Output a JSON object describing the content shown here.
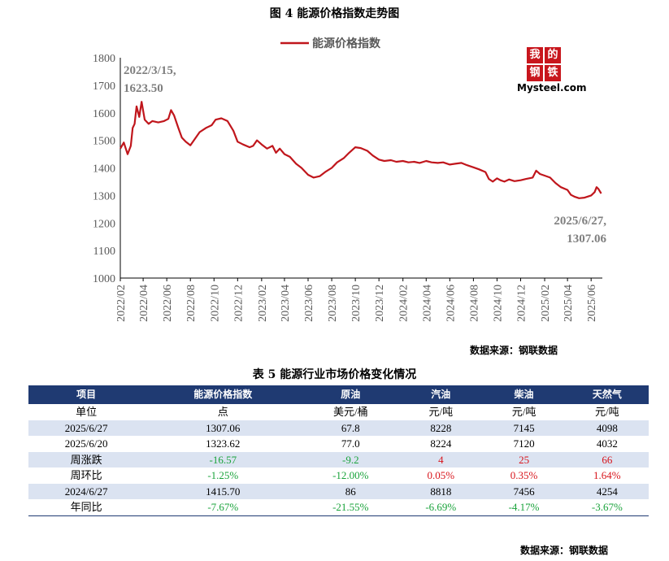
{
  "figure_title": "图 4  能源价格指数走势图",
  "logo": {
    "chars": [
      "我",
      "的",
      "钢",
      "铁"
    ],
    "text": "Mysteel.com",
    "icon": "mysteel-logo"
  },
  "chart_data": {
    "type": "line",
    "title": "图 4  能源价格指数走势图",
    "legend": "top-center",
    "series": [
      {
        "name": "能源价格指数",
        "color": "#c0161c",
        "points": [
          [
            "2022/02/01",
            1470
          ],
          [
            "2022/02/10",
            1492
          ],
          [
            "2022/02/20",
            1450
          ],
          [
            "2022/02/28",
            1480
          ],
          [
            "2022/03/05",
            1545
          ],
          [
            "2022/03/10",
            1560
          ],
          [
            "2022/03/15",
            1623.5
          ],
          [
            "2022/03/22",
            1585
          ],
          [
            "2022/03/28",
            1640
          ],
          [
            "2022/04/05",
            1575
          ],
          [
            "2022/04/15",
            1560
          ],
          [
            "2022/04/25",
            1570
          ],
          [
            "2022/05/10",
            1565
          ],
          [
            "2022/05/25",
            1570
          ],
          [
            "2022/06/05",
            1578
          ],
          [
            "2022/06/12",
            1610
          ],
          [
            "2022/06/20",
            1590
          ],
          [
            "2022/07/01",
            1545
          ],
          [
            "2022/07/10",
            1510
          ],
          [
            "2022/07/20",
            1495
          ],
          [
            "2022/08/01",
            1482
          ],
          [
            "2022/08/10",
            1500
          ],
          [
            "2022/08/25",
            1530
          ],
          [
            "2022/09/10",
            1545
          ],
          [
            "2022/09/25",
            1555
          ],
          [
            "2022/10/05",
            1575
          ],
          [
            "2022/10/20",
            1580
          ],
          [
            "2022/11/05",
            1570
          ],
          [
            "2022/11/20",
            1535
          ],
          [
            "2022/12/01",
            1495
          ],
          [
            "2022/12/15",
            1485
          ],
          [
            "2023/01/01",
            1475
          ],
          [
            "2023/01/10",
            1480
          ],
          [
            "2023/01/20",
            1500
          ],
          [
            "2023/02/01",
            1485
          ],
          [
            "2023/02/15",
            1470
          ],
          [
            "2023/03/01",
            1480
          ],
          [
            "2023/03/10",
            1455
          ],
          [
            "2023/03/20",
            1470
          ],
          [
            "2023/04/01",
            1450
          ],
          [
            "2023/04/15",
            1440
          ],
          [
            "2023/05/01",
            1415
          ],
          [
            "2023/05/15",
            1400
          ],
          [
            "2023/06/01",
            1375
          ],
          [
            "2023/06/15",
            1365
          ],
          [
            "2023/07/01",
            1370
          ],
          [
            "2023/07/15",
            1385
          ],
          [
            "2023/08/01",
            1400
          ],
          [
            "2023/08/15",
            1420
          ],
          [
            "2023/09/01",
            1435
          ],
          [
            "2023/09/15",
            1455
          ],
          [
            "2023/10/01",
            1475
          ],
          [
            "2023/10/15",
            1472
          ],
          [
            "2023/11/01",
            1462
          ],
          [
            "2023/11/15",
            1445
          ],
          [
            "2023/12/01",
            1430
          ],
          [
            "2023/12/15",
            1425
          ],
          [
            "2024/01/01",
            1428
          ],
          [
            "2024/01/15",
            1422
          ],
          [
            "2024/02/01",
            1425
          ],
          [
            "2024/02/15",
            1420
          ],
          [
            "2024/03/01",
            1422
          ],
          [
            "2024/03/15",
            1418
          ],
          [
            "2024/04/01",
            1425
          ],
          [
            "2024/04/15",
            1420
          ],
          [
            "2024/05/01",
            1418
          ],
          [
            "2024/05/15",
            1420
          ],
          [
            "2024/06/01",
            1412
          ],
          [
            "2024/06/15",
            1415
          ],
          [
            "2024/07/01",
            1418
          ],
          [
            "2024/07/15",
            1410
          ],
          [
            "2024/08/01",
            1402
          ],
          [
            "2024/08/15",
            1395
          ],
          [
            "2024/09/01",
            1385
          ],
          [
            "2024/09/10",
            1360
          ],
          [
            "2024/09/20",
            1350
          ],
          [
            "2024/10/01",
            1362
          ],
          [
            "2024/10/10",
            1355
          ],
          [
            "2024/10/20",
            1350
          ],
          [
            "2024/11/01",
            1358
          ],
          [
            "2024/11/15",
            1352
          ],
          [
            "2024/12/01",
            1355
          ],
          [
            "2024/12/15",
            1360
          ],
          [
            "2025/01/01",
            1365
          ],
          [
            "2025/01/10",
            1390
          ],
          [
            "2025/01/20",
            1378
          ],
          [
            "2025/02/01",
            1372
          ],
          [
            "2025/02/15",
            1365
          ],
          [
            "2025/03/01",
            1345
          ],
          [
            "2025/03/15",
            1330
          ],
          [
            "2025/04/01",
            1320
          ],
          [
            "2025/04/10",
            1302
          ],
          [
            "2025/04/20",
            1295
          ],
          [
            "2025/05/01",
            1290
          ],
          [
            "2025/05/15",
            1292
          ],
          [
            "2025/06/01",
            1300
          ],
          [
            "2025/06/10",
            1312
          ],
          [
            "2025/06/15",
            1330
          ],
          [
            "2025/06/20",
            1323.62
          ],
          [
            "2025/06/27",
            1307.06
          ]
        ]
      }
    ],
    "y_axis": {
      "min": 1000,
      "max": 1800,
      "step": 100
    },
    "x_axis": {
      "start": "2022/02/01",
      "end": "2025/06/30",
      "ticks": [
        "2022/02",
        "2022/04",
        "2022/06",
        "2022/08",
        "2022/10",
        "2022/12",
        "2023/02",
        "2023/04",
        "2023/06",
        "2023/08",
        "2023/10",
        "2023/12",
        "2024/02",
        "2024/04",
        "2024/06",
        "2024/08",
        "2024/10",
        "2024/12",
        "2025/02",
        "2025/04",
        "2025/06"
      ]
    },
    "annotations": [
      {
        "lines": [
          "2022/3/15,",
          "1623.50"
        ]
      },
      {
        "lines": [
          "2025/6/27,",
          "1307.06"
        ]
      }
    ],
    "grid": false
  },
  "source_label_1": "数据来源：钢联数据",
  "table_title": "表 5 能源行业市场价格变化情况",
  "table": {
    "headers": [
      "项目",
      "能源价格指数",
      "原油",
      "汽油",
      "柴油",
      "天然气"
    ],
    "rows": [
      {
        "cells": [
          "单位",
          "点",
          "美元/桶",
          "元/吨",
          "元/吨",
          "元/吨"
        ],
        "shade": false,
        "colors": []
      },
      {
        "cells": [
          "2025/6/27",
          "1307.06",
          "67.8",
          "8228",
          "7145",
          "4098"
        ],
        "shade": true,
        "colors": []
      },
      {
        "cells": [
          "2025/6/20",
          "1323.62",
          "77.0",
          "8224",
          "7120",
          "4032"
        ],
        "shade": false,
        "colors": []
      },
      {
        "cells": [
          "周涨跌",
          "-16.57",
          "-9.2",
          "4",
          "25",
          "66"
        ],
        "shade": true,
        "colors": [
          "",
          "neg",
          "neg",
          "pos",
          "pos",
          "pos"
        ]
      },
      {
        "cells": [
          "周环比",
          "-1.25%",
          "-12.00%",
          "0.05%",
          "0.35%",
          "1.64%"
        ],
        "shade": false,
        "colors": [
          "",
          "neg",
          "neg",
          "pos",
          "pos",
          "pos"
        ]
      },
      {
        "cells": [
          "2024/6/27",
          "1415.70",
          "86",
          "8818",
          "7456",
          "4254"
        ],
        "shade": true,
        "colors": []
      },
      {
        "cells": [
          "年同比",
          "-7.67%",
          "-21.55%",
          "-6.69%",
          "-4.17%",
          "-3.67%"
        ],
        "shade": false,
        "colors": [
          "",
          "neg",
          "neg",
          "neg",
          "neg",
          "neg"
        ]
      }
    ]
  },
  "source_label_2": "数据来源：钢联数据"
}
